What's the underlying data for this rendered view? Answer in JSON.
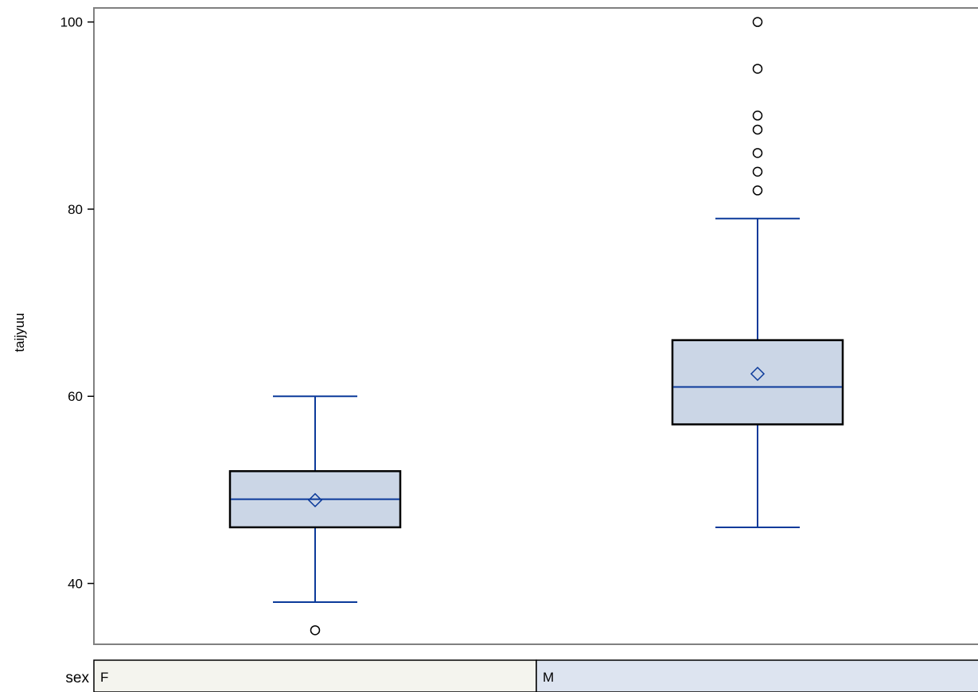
{
  "chart_data": {
    "type": "box",
    "ylabel": "taijyuu",
    "class_label": "sex",
    "ylim": [
      33.5,
      101.5
    ],
    "yticks": [
      40,
      60,
      80,
      100
    ],
    "grid": false,
    "colors": {
      "box_fill": "#cbd6e6",
      "box_edge": "#000000",
      "whisker": "#0b3a9a",
      "mean_marker": "#0b3a9a",
      "outlier": "#000000",
      "frame": "#808080",
      "class_cell_F": "#f4f4ee",
      "class_cell_M": "#dde4f0"
    },
    "groups": [
      {
        "category": "F",
        "whisker_low": 38,
        "q1": 46,
        "median": 49,
        "mean": 48.9,
        "q3": 52,
        "whisker_high": 60,
        "outliers": [
          35
        ]
      },
      {
        "category": "M",
        "whisker_low": 46,
        "q1": 57,
        "median": 61,
        "mean": 62.4,
        "q3": 66,
        "whisker_high": 79,
        "outliers": [
          82,
          84,
          86,
          88.5,
          90,
          95,
          100
        ]
      }
    ]
  }
}
